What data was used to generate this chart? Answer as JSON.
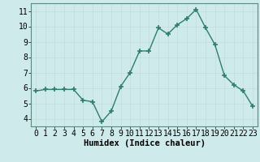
{
  "x": [
    0,
    1,
    2,
    3,
    4,
    5,
    6,
    7,
    8,
    9,
    10,
    11,
    12,
    13,
    14,
    15,
    16,
    17,
    18,
    19,
    20,
    21,
    22,
    23
  ],
  "y": [
    5.8,
    5.9,
    5.9,
    5.9,
    5.9,
    5.2,
    5.1,
    3.8,
    4.5,
    6.1,
    7.0,
    8.4,
    8.4,
    9.9,
    9.5,
    10.1,
    10.5,
    11.1,
    9.9,
    8.8,
    6.8,
    6.2,
    5.8,
    4.8
  ],
  "line_color": "#2e7d6e",
  "marker": "+",
  "marker_size": 4,
  "bg_color": "#ceeaea",
  "grid_color": "#c0dcdc",
  "xlabel": "Humidex (Indice chaleur)",
  "xlabel_fontsize": 7.5,
  "tick_fontsize": 7,
  "ylim": [
    3.5,
    11.5
  ],
  "xlim": [
    -0.5,
    23.5
  ],
  "yticks": [
    4,
    5,
    6,
    7,
    8,
    9,
    10,
    11
  ],
  "xticks": [
    0,
    1,
    2,
    3,
    4,
    5,
    6,
    7,
    8,
    9,
    10,
    11,
    12,
    13,
    14,
    15,
    16,
    17,
    18,
    19,
    20,
    21,
    22,
    23
  ],
  "spine_color": "#5a8a80",
  "linewidth": 1.0
}
